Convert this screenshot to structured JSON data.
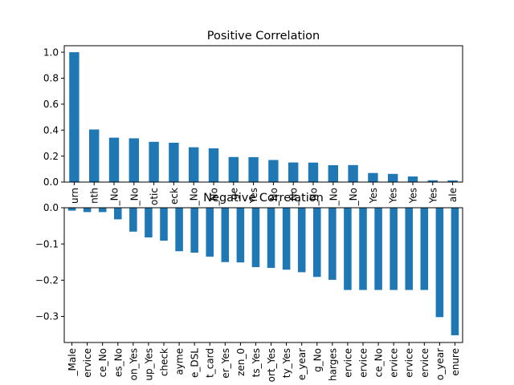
{
  "chart_data": [
    {
      "type": "bar",
      "title": "Positive Correlation",
      "categories": [
        "urn",
        "nth",
        "_No",
        "_No",
        "otic",
        "eck",
        "_No",
        "_No",
        "ge",
        "Yes",
        "_No",
        "_No",
        "_No",
        "_No",
        "_No",
        "Yes",
        "Yes",
        "Yes",
        "Yes",
        "ale"
      ],
      "values": [
        1.0,
        0.405,
        0.342,
        0.337,
        0.31,
        0.303,
        0.268,
        0.26,
        0.193,
        0.192,
        0.17,
        0.151,
        0.15,
        0.13,
        0.131,
        0.07,
        0.063,
        0.043,
        0.014,
        0.013
      ],
      "yticks": [
        "0.0",
        "0.2",
        "0.4",
        "0.6",
        "0.8",
        "1.0"
      ],
      "ylim": [
        0,
        1.05
      ]
    },
    {
      "type": "bar",
      "title": "Negative Correlation",
      "categories": [
        "_Male",
        "ervice",
        "ce_No",
        "es_No",
        "on_Yes",
        "up_Yes",
        "check",
        "ayme",
        "e_DSL",
        "t_card",
        "er_Yes",
        "zen_0",
        "ts_Yes",
        "ort_Yes",
        "ty_Yes",
        "e_year",
        "g_No",
        "harges",
        "ervice",
        "ervice",
        "ce_No",
        "ervice",
        "ervice",
        "ervice",
        "o_year",
        "enure"
      ],
      "values": [
        -0.008,
        -0.012,
        -0.012,
        -0.032,
        -0.066,
        -0.082,
        -0.091,
        -0.12,
        -0.124,
        -0.135,
        -0.15,
        -0.151,
        -0.164,
        -0.166,
        -0.171,
        -0.178,
        -0.191,
        -0.199,
        -0.227,
        -0.227,
        -0.227,
        -0.227,
        -0.227,
        -0.227,
        -0.302,
        -0.352
      ],
      "yticks": [
        "0.0",
        "−0.1",
        "−0.2",
        "−0.3"
      ],
      "ylim": [
        -0.372,
        0
      ]
    }
  ]
}
